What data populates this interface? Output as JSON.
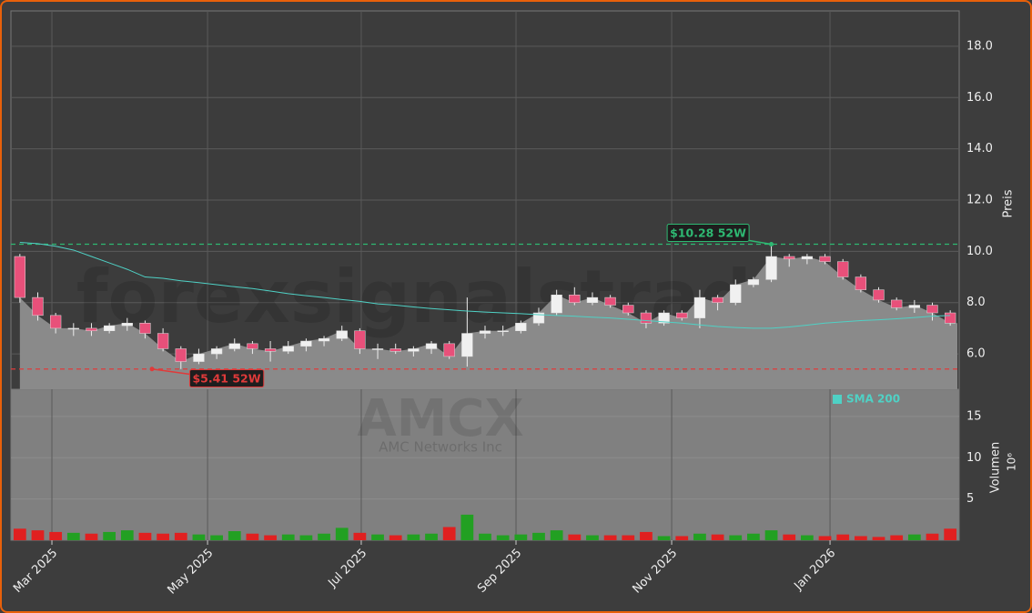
{
  "chart_data": {
    "type": "candlestick",
    "ticker": "AMCX",
    "company": "AMC Networks Inc",
    "watermark": "forexsignalstrade",
    "y_label": "Preis",
    "y2_label": "Volumen",
    "y2_multiplier": "10⁶",
    "categories": [
      null,
      null,
      null,
      null,
      null,
      null,
      null,
      null,
      null,
      null,
      null,
      null,
      null,
      null,
      null,
      null,
      null,
      null,
      null,
      null,
      null,
      null,
      null,
      null,
      null,
      null,
      null,
      null,
      null,
      null,
      null,
      null,
      null,
      null,
      null,
      null,
      null,
      null,
      null,
      null,
      null,
      null,
      null,
      null,
      null,
      null,
      null,
      null,
      null,
      null,
      null,
      null,
      null
    ],
    "xticks": [
      {
        "value": 1.79,
        "label": "Mar 2025"
      },
      {
        "value": 10.49,
        "label": "May 2025"
      },
      {
        "value": 19.08,
        "label": "Jul 2025"
      },
      {
        "value": 27.73,
        "label": "Sep 2025"
      },
      {
        "value": 36.43,
        "label": "Nov 2025"
      },
      {
        "value": 45.28,
        "label": "Jan 2026"
      }
    ],
    "open": [
      9.8,
      8.2,
      7.5,
      7.0,
      7.0,
      6.9,
      7.1,
      7.2,
      6.8,
      6.2,
      5.7,
      6.0,
      6.2,
      6.4,
      6.2,
      6.1,
      6.3,
      6.5,
      6.6,
      6.9,
      6.2,
      6.2,
      6.1,
      6.2,
      6.4,
      5.9,
      6.8,
      6.9,
      6.9,
      7.2,
      7.6,
      8.3,
      8.0,
      8.2,
      7.9,
      7.6,
      7.2,
      7.6,
      7.4,
      8.2,
      8.0,
      8.7,
      8.9,
      9.8,
      9.7,
      9.8,
      9.6,
      9.0,
      8.5,
      8.1,
      7.8,
      7.9,
      7.6
    ],
    "high": [
      9.9,
      8.4,
      7.6,
      7.2,
      7.2,
      7.2,
      7.4,
      7.3,
      7.0,
      6.3,
      6.2,
      6.3,
      6.6,
      6.5,
      6.5,
      6.5,
      6.6,
      6.7,
      7.1,
      7.0,
      6.4,
      6.4,
      6.3,
      6.5,
      6.5,
      8.2,
      7.1,
      7.1,
      7.3,
      7.8,
      8.5,
      8.6,
      8.4,
      8.3,
      8.0,
      7.7,
      7.7,
      7.7,
      8.5,
      8.3,
      8.9,
      9.0,
      10.28,
      9.9,
      9.9,
      9.9,
      9.7,
      9.1,
      8.6,
      8.2,
      8.1,
      8.0,
      7.7
    ],
    "low": [
      8.0,
      7.3,
      6.8,
      6.7,
      6.7,
      6.8,
      6.9,
      6.6,
      6.1,
      5.41,
      5.6,
      5.8,
      6.1,
      6.0,
      5.7,
      6.0,
      6.1,
      6.3,
      6.5,
      6.0,
      5.8,
      6.0,
      5.9,
      6.0,
      5.8,
      5.5,
      6.6,
      6.7,
      6.8,
      7.1,
      7.5,
      7.9,
      7.9,
      7.8,
      7.5,
      7.0,
      7.1,
      7.3,
      7.0,
      7.7,
      7.9,
      8.6,
      8.8,
      9.4,
      9.5,
      9.5,
      8.9,
      8.4,
      8.0,
      7.7,
      7.6,
      7.3,
      7.1
    ],
    "close": [
      8.2,
      7.5,
      7.0,
      7.0,
      6.9,
      7.1,
      7.2,
      6.8,
      6.2,
      5.7,
      6.0,
      6.2,
      6.4,
      6.2,
      6.1,
      6.3,
      6.5,
      6.6,
      6.9,
      6.2,
      6.2,
      6.1,
      6.2,
      6.4,
      5.9,
      6.8,
      6.9,
      6.9,
      7.2,
      7.6,
      8.3,
      8.0,
      8.2,
      7.9,
      7.6,
      7.2,
      7.6,
      7.4,
      8.2,
      8.0,
      8.7,
      8.9,
      9.8,
      9.7,
      9.8,
      9.6,
      9.0,
      8.5,
      8.1,
      7.8,
      7.9,
      7.6,
      7.2
    ],
    "volume": [
      1.4,
      1.2,
      1.0,
      0.9,
      0.8,
      1.0,
      1.2,
      0.9,
      0.8,
      0.9,
      0.7,
      0.6,
      1.1,
      0.8,
      0.6,
      0.7,
      0.6,
      0.8,
      1.5,
      0.9,
      0.7,
      0.6,
      0.7,
      0.8,
      1.6,
      3.1,
      0.8,
      0.6,
      0.7,
      0.9,
      1.2,
      0.7,
      0.6,
      0.6,
      0.6,
      1.0,
      0.5,
      0.5,
      0.8,
      0.7,
      0.6,
      0.8,
      1.2,
      0.7,
      0.6,
      0.5,
      0.7,
      0.5,
      0.4,
      0.6,
      0.7,
      0.8,
      1.4
    ],
    "series": [
      {
        "name": "SMA 200",
        "color": "#4fd1c5",
        "values": [
          10.35,
          10.3,
          10.2,
          10.05,
          9.8,
          9.55,
          9.3,
          9.0,
          8.95,
          8.85,
          8.78,
          8.7,
          8.62,
          8.55,
          8.45,
          8.35,
          8.27,
          8.2,
          8.12,
          8.05,
          7.95,
          7.9,
          7.83,
          7.77,
          7.72,
          7.67,
          7.63,
          7.6,
          7.57,
          7.53,
          7.5,
          7.47,
          7.43,
          7.4,
          7.35,
          7.3,
          7.25,
          7.2,
          7.13,
          7.07,
          7.03,
          7.0,
          7.0,
          7.05,
          7.12,
          7.2,
          7.25,
          7.3,
          7.33,
          7.37,
          7.42,
          7.47,
          7.5
        ]
      }
    ],
    "up_color": "#22a022",
    "down_color": "#e02020",
    "high_line": {
      "value": 10.28,
      "label": "$10.28 52W",
      "color": "#2eb872"
    },
    "low_line": {
      "value": 5.41,
      "label": "$5.41 52W",
      "color": "#e03a3a"
    },
    "ylim": [
      4.62,
      19.38
    ],
    "yticks": [
      {
        "value": 6,
        "label": "6.0"
      },
      {
        "value": 8,
        "label": "8.0"
      },
      {
        "value": 10,
        "label": "10.0"
      },
      {
        "value": 12,
        "label": "12.0"
      },
      {
        "value": 14,
        "label": "14.0"
      },
      {
        "value": 16,
        "label": "16.0"
      },
      {
        "value": 18,
        "label": "18.0"
      }
    ],
    "y2lim": [
      0,
      18.3
    ],
    "y2ticks": [
      5,
      10,
      15
    ],
    "grid": true
  }
}
